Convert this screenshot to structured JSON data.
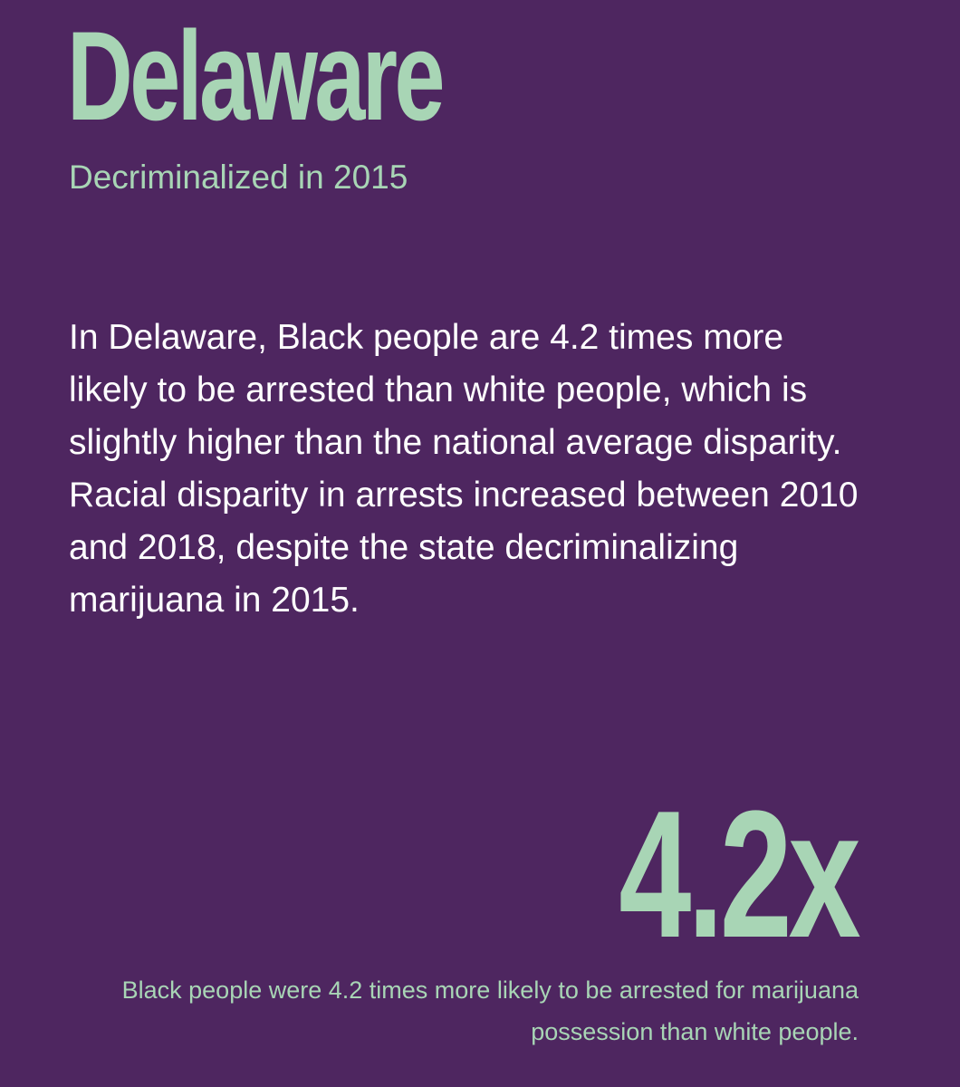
{
  "colors": {
    "background": "#4e2660",
    "accent": "#a8d5b5",
    "body_text": "#ffffff"
  },
  "title": "Delaware",
  "subtitle": "Decriminalized in 2015",
  "body": "In Delaware, Black people are 4.2 times more likely to be arrested than white people, which is slightly higher than the national average disparity. Racial disparity in arrests increased between 2010 and 2018, despite the state decriminalizing marijuana in 2015.",
  "stat": {
    "value": "4.2x",
    "caption": "Black people were 4.2 times more likely to be arrested for marijuana possession than white people."
  }
}
